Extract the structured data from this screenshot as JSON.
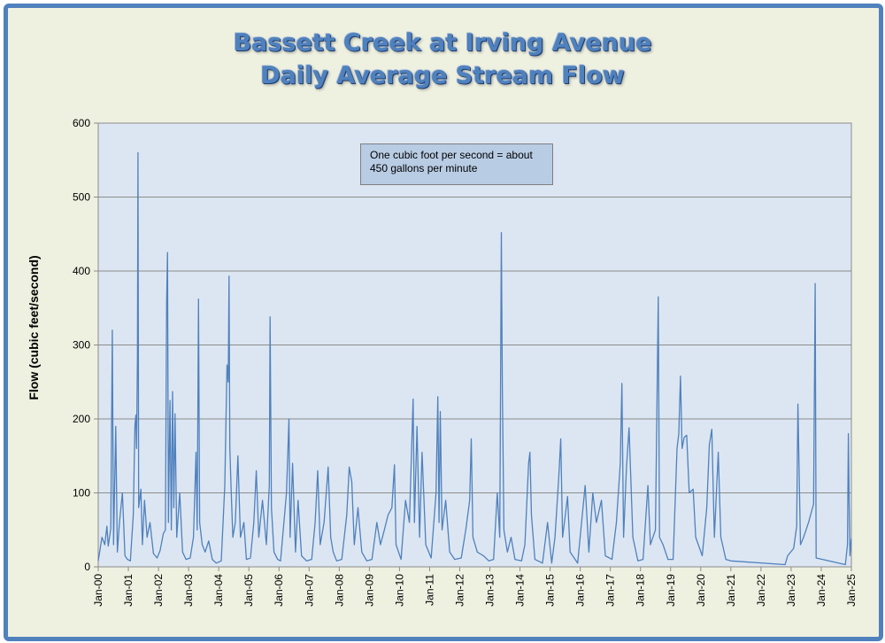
{
  "chart_data": {
    "type": "line",
    "title": "Bassett Creek at Irving Avenue",
    "subtitle": "Daily Average Stream Flow",
    "xlabel": "",
    "ylabel": "Flow (cubic feet/second)",
    "ylim": [
      0,
      600
    ],
    "yticks": [
      0,
      100,
      200,
      300,
      400,
      500,
      600
    ],
    "xlim": [
      "2000-01-01",
      "2025-01-01"
    ],
    "xticks": [
      "Jan-00",
      "Jan-01",
      "Jan-02",
      "Jan-03",
      "Jan-04",
      "Jan-05",
      "Jan-06",
      "Jan-07",
      "Jan-08",
      "Jan-09",
      "Jan-10",
      "Jan-11",
      "Jan-12",
      "Jan-13",
      "Jan-14",
      "Jan-15",
      "Jan-16",
      "Jan-17",
      "Jan-18",
      "Jan-19",
      "Jan-20",
      "Jan-21",
      "Jan-22",
      "Jan-23",
      "Jan-24",
      "Jan-25"
    ],
    "grid": "horizontal",
    "annotation": "One cubic foot per second = about 450 gallons per minute",
    "series": [
      {
        "color": "#4f81bd",
        "points": [
          [
            "2000-01-01",
            8
          ],
          [
            "2000-02-15",
            40
          ],
          [
            "2000-03-20",
            30
          ],
          [
            "2000-04-15",
            55
          ],
          [
            "2000-05-01",
            28
          ],
          [
            "2000-06-01",
            52
          ],
          [
            "2000-06-20",
            320
          ],
          [
            "2000-07-05",
            30
          ],
          [
            "2000-08-01",
            190
          ],
          [
            "2000-08-20",
            20
          ],
          [
            "2000-09-15",
            60
          ],
          [
            "2000-10-20",
            100
          ],
          [
            "2000-11-20",
            15
          ],
          [
            "2000-12-20",
            10
          ],
          [
            "2001-01-25",
            8
          ],
          [
            "2001-03-01",
            70
          ],
          [
            "2001-03-20",
            190
          ],
          [
            "2001-04-01",
            205
          ],
          [
            "2001-04-10",
            160
          ],
          [
            "2001-04-20",
            283
          ],
          [
            "2001-04-27",
            560
          ],
          [
            "2001-05-05",
            80
          ],
          [
            "2001-06-01",
            105
          ],
          [
            "2001-06-20",
            30
          ],
          [
            "2001-07-15",
            90
          ],
          [
            "2001-08-15",
            40
          ],
          [
            "2001-09-20",
            60
          ],
          [
            "2001-11-01",
            18
          ],
          [
            "2001-12-15",
            12
          ],
          [
            "2002-01-20",
            22
          ],
          [
            "2002-03-01",
            45
          ],
          [
            "2002-03-25",
            50
          ],
          [
            "2002-04-10",
            362
          ],
          [
            "2002-04-20",
            425
          ],
          [
            "2002-05-01",
            60
          ],
          [
            "2002-05-20",
            225
          ],
          [
            "2002-06-05",
            50
          ],
          [
            "2002-06-20",
            237
          ],
          [
            "2002-07-05",
            80
          ],
          [
            "2002-07-20",
            207
          ],
          [
            "2002-08-10",
            40
          ],
          [
            "2002-09-15",
            100
          ],
          [
            "2002-10-20",
            20
          ],
          [
            "2002-12-01",
            10
          ],
          [
            "2003-01-20",
            12
          ],
          [
            "2003-03-01",
            40
          ],
          [
            "2003-04-01",
            155
          ],
          [
            "2003-04-15",
            50
          ],
          [
            "2003-05-01",
            362
          ],
          [
            "2003-05-15",
            60
          ],
          [
            "2003-06-15",
            30
          ],
          [
            "2003-07-20",
            20
          ],
          [
            "2003-09-01",
            35
          ],
          [
            "2003-10-15",
            10
          ],
          [
            "2003-12-01",
            5
          ],
          [
            "2004-02-01",
            8
          ],
          [
            "2004-03-15",
            110
          ],
          [
            "2004-04-10",
            273
          ],
          [
            "2004-04-25",
            250
          ],
          [
            "2004-05-05",
            393
          ],
          [
            "2004-05-15",
            160
          ],
          [
            "2004-06-01",
            100
          ],
          [
            "2004-06-20",
            40
          ],
          [
            "2004-07-20",
            60
          ],
          [
            "2004-08-20",
            150
          ],
          [
            "2004-09-20",
            40
          ],
          [
            "2004-11-01",
            60
          ],
          [
            "2004-12-01",
            10
          ],
          [
            "2005-01-20",
            12
          ],
          [
            "2005-03-01",
            60
          ],
          [
            "2005-04-01",
            130
          ],
          [
            "2005-05-01",
            40
          ],
          [
            "2005-06-15",
            90
          ],
          [
            "2005-08-01",
            30
          ],
          [
            "2005-09-05",
            110
          ],
          [
            "2005-09-15",
            338
          ],
          [
            "2005-10-01",
            80
          ],
          [
            "2005-11-01",
            20
          ],
          [
            "2005-12-15",
            10
          ],
          [
            "2006-01-20",
            8
          ],
          [
            "2006-03-01",
            60
          ],
          [
            "2006-04-01",
            100
          ],
          [
            "2006-05-01",
            200
          ],
          [
            "2006-05-15",
            40
          ],
          [
            "2006-06-15",
            140
          ],
          [
            "2006-07-20",
            20
          ],
          [
            "2006-08-20",
            90
          ],
          [
            "2006-10-01",
            15
          ],
          [
            "2006-12-01",
            8
          ],
          [
            "2007-02-01",
            10
          ],
          [
            "2007-03-15",
            60
          ],
          [
            "2007-04-15",
            130
          ],
          [
            "2007-05-15",
            30
          ],
          [
            "2007-07-01",
            60
          ],
          [
            "2007-08-20",
            135
          ],
          [
            "2007-09-20",
            40
          ],
          [
            "2007-10-20",
            20
          ],
          [
            "2007-12-01",
            8
          ],
          [
            "2008-02-01",
            10
          ],
          [
            "2008-04-01",
            70
          ],
          [
            "2008-05-01",
            135
          ],
          [
            "2008-06-01",
            115
          ],
          [
            "2008-07-01",
            30
          ],
          [
            "2008-08-15",
            80
          ],
          [
            "2008-10-01",
            20
          ],
          [
            "2008-12-01",
            8
          ],
          [
            "2009-02-01",
            10
          ],
          [
            "2009-04-01",
            60
          ],
          [
            "2009-05-15",
            30
          ],
          [
            "2009-07-01",
            50
          ],
          [
            "2009-08-15",
            70
          ],
          [
            "2009-10-01",
            80
          ],
          [
            "2009-11-01",
            138
          ],
          [
            "2009-11-20",
            30
          ],
          [
            "2010-01-20",
            10
          ],
          [
            "2010-03-15",
            90
          ],
          [
            "2010-05-01",
            60
          ],
          [
            "2010-06-15",
            227
          ],
          [
            "2010-07-01",
            60
          ],
          [
            "2010-08-01",
            190
          ],
          [
            "2010-09-01",
            40
          ],
          [
            "2010-10-01",
            155
          ],
          [
            "2010-11-15",
            30
          ],
          [
            "2011-01-20",
            12
          ],
          [
            "2011-03-20",
            100
          ],
          [
            "2011-04-10",
            230
          ],
          [
            "2011-04-25",
            60
          ],
          [
            "2011-05-10",
            210
          ],
          [
            "2011-06-01",
            50
          ],
          [
            "2011-07-15",
            90
          ],
          [
            "2011-09-01",
            20
          ],
          [
            "2011-11-01",
            10
          ],
          [
            "2012-01-20",
            12
          ],
          [
            "2012-03-15",
            50
          ],
          [
            "2012-05-01",
            90
          ],
          [
            "2012-05-20",
            173
          ],
          [
            "2012-06-10",
            40
          ],
          [
            "2012-08-01",
            20
          ],
          [
            "2012-10-15",
            15
          ],
          [
            "2012-12-20",
            8
          ],
          [
            "2013-02-15",
            10
          ],
          [
            "2013-04-01",
            100
          ],
          [
            "2013-05-01",
            40
          ],
          [
            "2013-05-20",
            452
          ],
          [
            "2013-06-01",
            243
          ],
          [
            "2013-06-20",
            50
          ],
          [
            "2013-08-01",
            20
          ],
          [
            "2013-09-15",
            40
          ],
          [
            "2013-11-01",
            10
          ],
          [
            "2014-01-20",
            8
          ],
          [
            "2014-03-01",
            30
          ],
          [
            "2014-04-15",
            140
          ],
          [
            "2014-05-01",
            155
          ],
          [
            "2014-05-20",
            70
          ],
          [
            "2014-07-01",
            10
          ],
          [
            "2014-10-01",
            5
          ],
          [
            "2014-12-01",
            60
          ],
          [
            "2015-01-20",
            5
          ],
          [
            "2015-03-01",
            40
          ],
          [
            "2015-04-15",
            120
          ],
          [
            "2015-05-10",
            173
          ],
          [
            "2015-06-01",
            40
          ],
          [
            "2015-08-01",
            95
          ],
          [
            "2015-09-01",
            20
          ],
          [
            "2015-12-01",
            5
          ],
          [
            "2016-03-01",
            110
          ],
          [
            "2016-04-15",
            20
          ],
          [
            "2016-06-01",
            100
          ],
          [
            "2016-07-15",
            60
          ],
          [
            "2016-09-15",
            90
          ],
          [
            "2016-11-01",
            15
          ],
          [
            "2017-01-20",
            10
          ],
          [
            "2017-03-15",
            60
          ],
          [
            "2017-05-01",
            140
          ],
          [
            "2017-05-20",
            248
          ],
          [
            "2017-06-10",
            40
          ],
          [
            "2017-07-15",
            135
          ],
          [
            "2017-08-15",
            188
          ],
          [
            "2017-10-01",
            40
          ],
          [
            "2017-12-01",
            8
          ],
          [
            "2018-02-01",
            10
          ],
          [
            "2018-04-01",
            110
          ],
          [
            "2018-05-01",
            30
          ],
          [
            "2018-07-01",
            50
          ],
          [
            "2018-08-05",
            365
          ],
          [
            "2018-08-20",
            40
          ],
          [
            "2018-10-01",
            30
          ],
          [
            "2018-12-01",
            10
          ],
          [
            "2019-02-01",
            10
          ],
          [
            "2019-03-20",
            160
          ],
          [
            "2019-04-10",
            180
          ],
          [
            "2019-05-01",
            258
          ],
          [
            "2019-05-20",
            160
          ],
          [
            "2019-06-15",
            175
          ],
          [
            "2019-07-15",
            178
          ],
          [
            "2019-08-15",
            100
          ],
          [
            "2019-10-01",
            105
          ],
          [
            "2019-11-01",
            40
          ],
          [
            "2020-01-20",
            15
          ],
          [
            "2020-03-15",
            80
          ],
          [
            "2020-04-15",
            165
          ],
          [
            "2020-05-15",
            186
          ],
          [
            "2020-06-15",
            40
          ],
          [
            "2020-08-01",
            155
          ],
          [
            "2020-09-01",
            40
          ],
          [
            "2020-11-01",
            10
          ],
          [
            "2021-01-01",
            8
          ],
          [
            "2022-10-20",
            3
          ],
          [
            "2022-11-20",
            15
          ],
          [
            "2023-02-01",
            25
          ],
          [
            "2023-03-10",
            55
          ],
          [
            "2023-03-25",
            220
          ],
          [
            "2023-04-10",
            120
          ],
          [
            "2023-04-25",
            30
          ],
          [
            "2023-06-01",
            40
          ],
          [
            "2023-08-01",
            60
          ],
          [
            "2023-10-01",
            85
          ],
          [
            "2023-10-20",
            383
          ],
          [
            "2023-11-01",
            12
          ],
          [
            "2024-10-20",
            3
          ],
          [
            "2024-11-15",
            30
          ],
          [
            "2024-11-25",
            180
          ],
          [
            "2024-12-05",
            85
          ],
          [
            "2024-12-15",
            15
          ],
          [
            "2024-12-31",
            38
          ]
        ]
      }
    ]
  }
}
